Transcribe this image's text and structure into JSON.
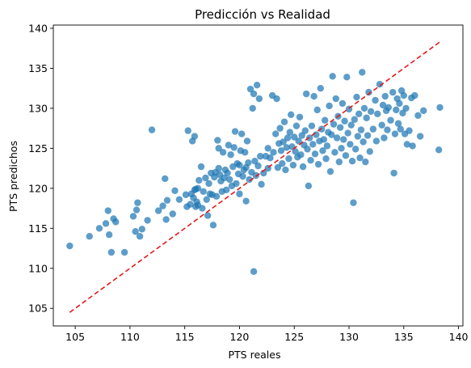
{
  "chart_data": {
    "type": "scatter",
    "title": "Predicción vs Realidad",
    "xlabel": "PTS reales",
    "ylabel": "PTS predichos",
    "xlim": [
      103,
      140.4
    ],
    "ylim": [
      102.8,
      140.4
    ],
    "xticks": [
      105,
      110,
      115,
      120,
      125,
      130,
      135,
      140
    ],
    "yticks": [
      105,
      110,
      115,
      120,
      125,
      130,
      135,
      140
    ],
    "grid": false,
    "marker_color": "#1f77b4",
    "reference_line": {
      "style": "dashed",
      "color": "#e41a1c",
      "x": [
        104.5,
        138.3
      ],
      "y": [
        104.5,
        138.3
      ]
    },
    "series": [
      {
        "points": [
          [
            104.5,
            112.8
          ],
          [
            106.3,
            114.0
          ],
          [
            107.2,
            115.0
          ],
          [
            107.8,
            115.6
          ],
          [
            108.0,
            117.2
          ],
          [
            108.1,
            114.2
          ],
          [
            108.3,
            112.0
          ],
          [
            108.5,
            116.2
          ],
          [
            108.7,
            115.8
          ],
          [
            109.5,
            112.0
          ],
          [
            110.3,
            116.5
          ],
          [
            110.5,
            114.6
          ],
          [
            110.6,
            117.3
          ],
          [
            110.7,
            118.2
          ],
          [
            110.9,
            114.0
          ],
          [
            111.1,
            114.9
          ],
          [
            111.6,
            116.0
          ],
          [
            112.0,
            127.3
          ],
          [
            112.6,
            117.2
          ],
          [
            113.0,
            117.8
          ],
          [
            113.2,
            121.2
          ],
          [
            113.3,
            116.1
          ],
          [
            113.4,
            118.5
          ],
          [
            113.9,
            116.8
          ],
          [
            114.1,
            119.7
          ],
          [
            114.5,
            118.6
          ],
          [
            115.1,
            119.2
          ],
          [
            115.2,
            117.7
          ],
          [
            115.3,
            127.2
          ],
          [
            115.5,
            118.0
          ],
          [
            115.6,
            119.3
          ],
          [
            115.7,
            125.9
          ],
          [
            115.8,
            118.8
          ],
          [
            115.9,
            126.5
          ],
          [
            115.9,
            119.8
          ],
          [
            116.0,
            117.7
          ],
          [
            116.0,
            119.9
          ],
          [
            116.1,
            118.3
          ],
          [
            116.2,
            117.9
          ],
          [
            116.2,
            120.0
          ],
          [
            116.3,
            121.0
          ],
          [
            116.5,
            122.7
          ],
          [
            116.6,
            117.5
          ],
          [
            116.7,
            119.6
          ],
          [
            116.9,
            121.3
          ],
          [
            117.0,
            118.6
          ],
          [
            117.1,
            116.6
          ],
          [
            117.2,
            120.6
          ],
          [
            117.3,
            119.3
          ],
          [
            117.4,
            121.9
          ],
          [
            117.5,
            119.2
          ],
          [
            117.6,
            115.4
          ],
          [
            117.7,
            121.4
          ],
          [
            117.8,
            122.0
          ],
          [
            117.9,
            119.0
          ],
          [
            118.0,
            126.0
          ],
          [
            118.1,
            122.5
          ],
          [
            118.1,
            125.0
          ],
          [
            118.2,
            121.7
          ],
          [
            118.3,
            120.9
          ],
          [
            118.4,
            119.6
          ],
          [
            118.5,
            124.5
          ],
          [
            118.6,
            121.3
          ],
          [
            118.7,
            122.3
          ],
          [
            118.8,
            119.8
          ],
          [
            118.9,
            121.9
          ],
          [
            119.0,
            125.4
          ],
          [
            119.1,
            121.1
          ],
          [
            119.2,
            124.2
          ],
          [
            119.3,
            120.3
          ],
          [
            119.4,
            122.7
          ],
          [
            119.5,
            125.1
          ],
          [
            119.6,
            127.1
          ],
          [
            119.7,
            120.6
          ],
          [
            119.8,
            123.1
          ],
          [
            119.9,
            121.8
          ],
          [
            120.0,
            119.3
          ],
          [
            120.0,
            122.9
          ],
          [
            120.1,
            124.7
          ],
          [
            120.2,
            126.8
          ],
          [
            120.3,
            121.5
          ],
          [
            120.4,
            122.3
          ],
          [
            120.5,
            124.5
          ],
          [
            120.6,
            118.4
          ],
          [
            120.6,
            122.6
          ],
          [
            120.7,
            125.9
          ],
          [
            120.8,
            123.2
          ],
          [
            120.9,
            121.1
          ],
          [
            121.0,
            132.4
          ],
          [
            121.1,
            122.0
          ],
          [
            121.2,
            130.0
          ],
          [
            121.3,
            109.6
          ],
          [
            121.3,
            131.8
          ],
          [
            121.4,
            123.4
          ],
          [
            121.5,
            121.6
          ],
          [
            121.6,
            132.9
          ],
          [
            121.7,
            122.8
          ],
          [
            121.8,
            131.2
          ],
          [
            121.9,
            124.0
          ],
          [
            122.0,
            120.5
          ],
          [
            122.2,
            121.9
          ],
          [
            122.4,
            124.0
          ],
          [
            122.6,
            125.0
          ],
          [
            122.6,
            122.5
          ],
          [
            122.8,
            123.8
          ],
          [
            123.0,
            131.6
          ],
          [
            123.1,
            124.5
          ],
          [
            123.3,
            126.8
          ],
          [
            123.4,
            131.2
          ],
          [
            123.5,
            122.6
          ],
          [
            123.6,
            125.6
          ],
          [
            123.7,
            127.5
          ],
          [
            123.8,
            124.7
          ],
          [
            123.9,
            123.1
          ],
          [
            124.0,
            125.8
          ],
          [
            124.1,
            128.3
          ],
          [
            124.2,
            122.3
          ],
          [
            124.3,
            125.1
          ],
          [
            124.4,
            126.3
          ],
          [
            124.5,
            123.7
          ],
          [
            124.6,
            127.0
          ],
          [
            124.7,
            129.2
          ],
          [
            124.8,
            125.2
          ],
          [
            124.9,
            122.9
          ],
          [
            125.0,
            126.4
          ],
          [
            125.1,
            124.6
          ],
          [
            125.2,
            127.8
          ],
          [
            125.3,
            123.9
          ],
          [
            125.4,
            125.9
          ],
          [
            125.5,
            128.9
          ],
          [
            125.6,
            124.2
          ],
          [
            125.7,
            126.6
          ],
          [
            125.8,
            122.7
          ],
          [
            125.9,
            125.4
          ],
          [
            126.0,
            127.2
          ],
          [
            126.1,
            131.8
          ],
          [
            126.2,
            124.9
          ],
          [
            126.3,
            120.3
          ],
          [
            126.4,
            126.3
          ],
          [
            126.5,
            123.5
          ],
          [
            126.6,
            127.8
          ],
          [
            126.7,
            125.5
          ],
          [
            126.8,
            131.5
          ],
          [
            126.9,
            124.3
          ],
          [
            127.0,
            126.7
          ],
          [
            127.1,
            129.8
          ],
          [
            127.2,
            123.0
          ],
          [
            127.3,
            125.9
          ],
          [
            127.4,
            132.5
          ],
          [
            127.5,
            127.4
          ],
          [
            127.6,
            124.7
          ],
          [
            127.7,
            126.1
          ],
          [
            127.8,
            128.5
          ],
          [
            127.9,
            123.7
          ],
          [
            128.0,
            125.3
          ],
          [
            128.1,
            127.0
          ],
          [
            128.2,
            130.3
          ],
          [
            128.3,
            122.1
          ],
          [
            128.4,
            126.7
          ],
          [
            128.5,
            134.0
          ],
          [
            128.6,
            128.0
          ],
          [
            128.7,
            124.5
          ],
          [
            128.8,
            131.2
          ],
          [
            128.9,
            126.3
          ],
          [
            129.0,
            129.0
          ],
          [
            129.1,
            123.3
          ],
          [
            129.2,
            127.6
          ],
          [
            129.3,
            125.0
          ],
          [
            129.4,
            130.6
          ],
          [
            129.5,
            126.1
          ],
          [
            129.6,
            128.4
          ],
          [
            129.7,
            124.1
          ],
          [
            129.8,
            133.9
          ],
          [
            129.9,
            126.9
          ],
          [
            130.0,
            129.9
          ],
          [
            130.1,
            125.5
          ],
          [
            130.2,
            127.9
          ],
          [
            130.3,
            123.4
          ],
          [
            130.4,
            118.2
          ],
          [
            130.5,
            128.6
          ],
          [
            130.6,
            124.9
          ],
          [
            130.7,
            131.4
          ],
          [
            130.8,
            126.5
          ],
          [
            130.9,
            129.3
          ],
          [
            131.0,
            123.8
          ],
          [
            131.1,
            127.3
          ],
          [
            131.2,
            134.5
          ],
          [
            131.3,
            125.8
          ],
          [
            131.4,
            130.0
          ],
          [
            131.5,
            123.3
          ],
          [
            131.6,
            128.8
          ],
          [
            131.7,
            126.6
          ],
          [
            131.8,
            132.0
          ],
          [
            131.9,
            124.6
          ],
          [
            132.0,
            129.6
          ],
          [
            132.2,
            127.4
          ],
          [
            132.4,
            131.0
          ],
          [
            132.5,
            125.9
          ],
          [
            132.6,
            129.3
          ],
          [
            132.8,
            133.0
          ],
          [
            133.0,
            127.9
          ],
          [
            133.1,
            130.4
          ],
          [
            133.2,
            126.3
          ],
          [
            133.3,
            131.5
          ],
          [
            133.4,
            129.7
          ],
          [
            133.5,
            127.3
          ],
          [
            133.6,
            130.1
          ],
          [
            133.8,
            128.5
          ],
          [
            134.0,
            132.0
          ],
          [
            134.1,
            121.9
          ],
          [
            134.2,
            126.8
          ],
          [
            134.3,
            129.8
          ],
          [
            134.4,
            131.2
          ],
          [
            134.5,
            128.1
          ],
          [
            134.6,
            130.6
          ],
          [
            134.7,
            127.4
          ],
          [
            134.8,
            132.2
          ],
          [
            134.9,
            129.4
          ],
          [
            135.0,
            131.6
          ],
          [
            135.1,
            126.8
          ],
          [
            135.2,
            130.0
          ],
          [
            135.3,
            125.5
          ],
          [
            135.5,
            127.2
          ],
          [
            135.7,
            131.3
          ],
          [
            135.8,
            125.3
          ],
          [
            136.0,
            131.6
          ],
          [
            136.3,
            129.1
          ],
          [
            136.5,
            126.5
          ],
          [
            136.8,
            129.7
          ],
          [
            138.2,
            124.8
          ],
          [
            138.3,
            130.1
          ]
        ]
      }
    ]
  }
}
